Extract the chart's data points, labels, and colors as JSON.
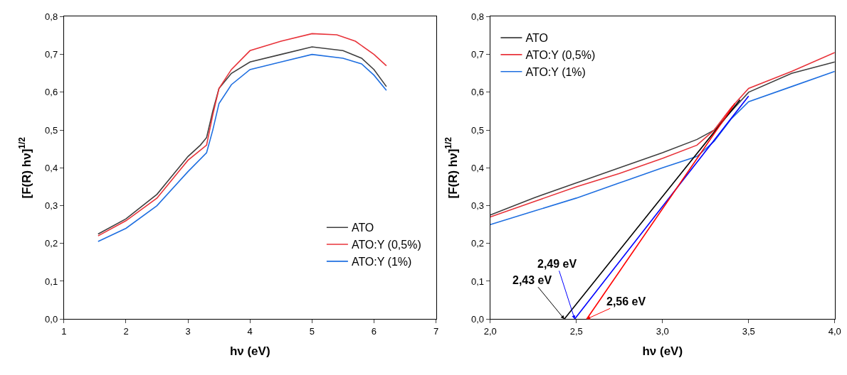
{
  "chart_data": [
    {
      "type": "line",
      "xlabel": "hν (eV)",
      "ylabel": "[F(R) hν]$^{1/2}$",
      "xlim": [
        1,
        7
      ],
      "xticks": [
        1,
        2,
        3,
        4,
        5,
        6,
        7
      ],
      "ylim": [
        0,
        0.8
      ],
      "yticks": [
        {
          "value": 0,
          "label": "0,0"
        },
        {
          "value": 0.1,
          "label": "0,1"
        },
        {
          "value": 0.2,
          "label": "0,2"
        },
        {
          "value": 0.3,
          "label": "0,3"
        },
        {
          "value": 0.4,
          "label": "0,4"
        },
        {
          "value": 0.5,
          "label": "0,5"
        },
        {
          "value": 0.6,
          "label": "0,6"
        },
        {
          "value": 0.7,
          "label": "0,7"
        },
        {
          "value": 0.8,
          "label": "0,8"
        }
      ],
      "legend": "bottom right",
      "series": [
        {
          "name": "ATO",
          "color": "#3f3f3f",
          "x": [
            1.55,
            2,
            2.5,
            3,
            3.2,
            3.3,
            3.4,
            3.5,
            3.7,
            4,
            4.5,
            5,
            5.5,
            5.8,
            6,
            6.2
          ],
          "values": [
            0.225,
            0.265,
            0.33,
            0.43,
            0.46,
            0.48,
            0.55,
            0.61,
            0.65,
            0.68,
            0.7,
            0.72,
            0.71,
            0.69,
            0.66,
            0.615
          ]
        },
        {
          "name": "ATO:Y (0,5%)",
          "color": "#e8333a",
          "x": [
            1.55,
            2,
            2.5,
            3,
            3.3,
            3.4,
            3.5,
            3.7,
            4,
            4.5,
            5,
            5.4,
            5.7,
            6,
            6.2
          ],
          "values": [
            0.22,
            0.26,
            0.32,
            0.42,
            0.46,
            0.54,
            0.61,
            0.66,
            0.71,
            0.735,
            0.755,
            0.752,
            0.735,
            0.7,
            0.67
          ]
        },
        {
          "name": "ATO:Y (1%)",
          "color": "#1f6fe0",
          "x": [
            1.55,
            2,
            2.5,
            3,
            3.3,
            3.4,
            3.5,
            3.7,
            4,
            4.5,
            5,
            5.5,
            5.8,
            6,
            6.2
          ],
          "values": [
            0.205,
            0.24,
            0.3,
            0.39,
            0.44,
            0.5,
            0.57,
            0.62,
            0.66,
            0.68,
            0.7,
            0.69,
            0.675,
            0.645,
            0.605
          ]
        }
      ]
    },
    {
      "type": "line",
      "xlabel": "hν (eV)",
      "ylabel": "[F(R) hν]$^{1/2}$",
      "xlim": [
        2,
        4
      ],
      "xticks": [
        {
          "value": 2,
          "label": "2,0"
        },
        {
          "value": 2.5,
          "label": "2,5"
        },
        {
          "value": 3,
          "label": "3,0"
        },
        {
          "value": 3.5,
          "label": "3,5"
        },
        {
          "value": 4,
          "label": "4,0"
        }
      ],
      "ylim": [
        0,
        0.8
      ],
      "yticks": [
        {
          "value": 0,
          "label": "0,0"
        },
        {
          "value": 0.1,
          "label": "0,1"
        },
        {
          "value": 0.2,
          "label": "0,2"
        },
        {
          "value": 0.3,
          "label": "0,3"
        },
        {
          "value": 0.4,
          "label": "0,4"
        },
        {
          "value": 0.5,
          "label": "0,5"
        },
        {
          "value": 0.6,
          "label": "0,6"
        },
        {
          "value": 0.7,
          "label": "0,7"
        },
        {
          "value": 0.8,
          "label": "0,8"
        }
      ],
      "legend": "top left",
      "series": [
        {
          "name": "ATO",
          "color": "#3f3f3f",
          "x": [
            2,
            2.25,
            2.5,
            2.75,
            3,
            3.2,
            3.3,
            3.4,
            3.5,
            3.75,
            4
          ],
          "values": [
            0.275,
            0.32,
            0.36,
            0.4,
            0.44,
            0.475,
            0.5,
            0.55,
            0.6,
            0.65,
            0.68
          ]
        },
        {
          "name": "ATO:Y (0,5%)",
          "color": "#e8333a",
          "x": [
            2,
            2.25,
            2.5,
            2.75,
            3,
            3.2,
            3.3,
            3.4,
            3.5,
            3.75,
            4
          ],
          "values": [
            0.27,
            0.31,
            0.35,
            0.385,
            0.425,
            0.46,
            0.5,
            0.56,
            0.61,
            0.655,
            0.705
          ]
        },
        {
          "name": "ATO:Y (1%)",
          "color": "#1f6fe0",
          "x": [
            2,
            2.25,
            2.5,
            2.75,
            3,
            3.2,
            3.3,
            3.4,
            3.5,
            3.75,
            4
          ],
          "values": [
            0.25,
            0.285,
            0.32,
            0.36,
            0.4,
            0.43,
            0.47,
            0.53,
            0.575,
            0.615,
            0.655
          ]
        },
        {
          "color": "#000000",
          "x": [
            2.43,
            3.45
          ],
          "values": [
            0,
            0.58
          ]
        },
        {
          "color": "#0000ff",
          "x": [
            2.49,
            3.5
          ],
          "values": [
            0,
            0.59
          ]
        },
        {
          "color": "#ff0000",
          "x": [
            2.56,
            3.42
          ],
          "values": [
            0,
            0.57
          ]
        }
      ],
      "annotations": [
        {
          "text": "2,43 eV",
          "x": 2.43,
          "y": 0
        },
        {
          "text": "2,49 eV",
          "x": 2.49,
          "y": 0
        },
        {
          "text": "2,56 eV",
          "x": 2.56,
          "y": 0
        }
      ]
    }
  ]
}
